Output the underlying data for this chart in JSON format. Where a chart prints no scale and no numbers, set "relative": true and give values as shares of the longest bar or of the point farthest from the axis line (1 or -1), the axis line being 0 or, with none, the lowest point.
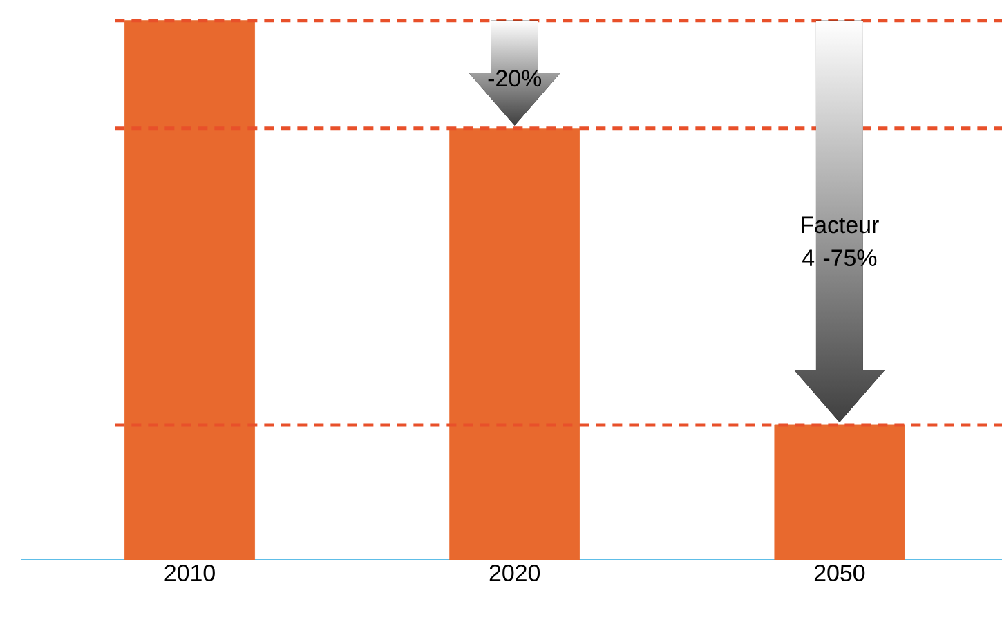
{
  "chart_data": {
    "type": "bar",
    "relative": true,
    "categories": [
      "2010",
      "2020",
      "2050"
    ],
    "values": [
      1,
      0.8,
      0.25
    ],
    "color": "#e8692e",
    "ref_lines": [
      {
        "axis": "y",
        "value": 1,
        "color": "#e8502a",
        "line_style": "dashed"
      },
      {
        "axis": "y",
        "value": 0.8,
        "color": "#e8502a",
        "line_style": "dashed"
      },
      {
        "axis": "y",
        "value": 0.25,
        "color": "#e8502a",
        "line_style": "dashed"
      }
    ],
    "annotations": [
      "-20%",
      "Facteur 4 -75%"
    ]
  }
}
